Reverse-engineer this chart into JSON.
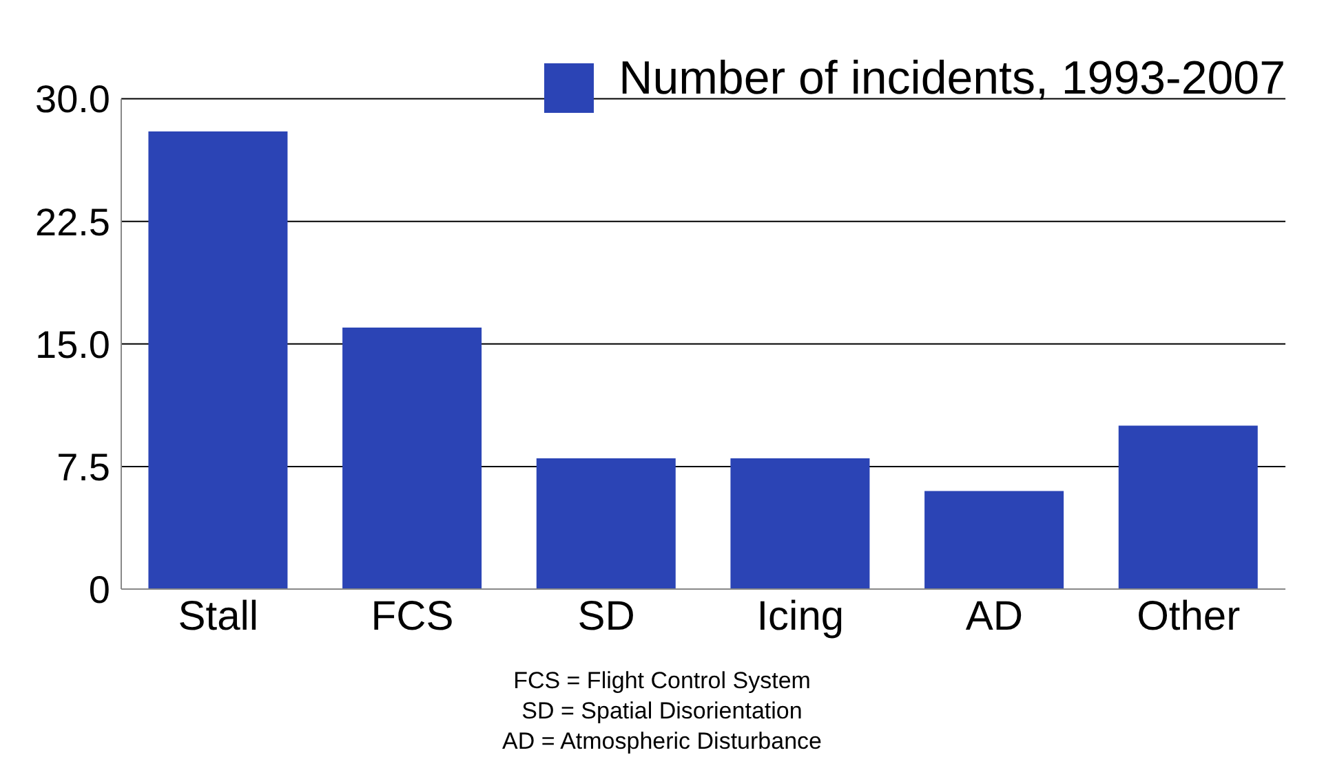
{
  "chart_data": {
    "type": "bar",
    "categories": [
      "Stall",
      "FCS",
      "SD",
      "Icing",
      "AD",
      "Other"
    ],
    "series": [
      {
        "name": "Number of incidents, 1993-2007",
        "color": "#2b44b5",
        "values": [
          28,
          16,
          8,
          8,
          6,
          10
        ]
      }
    ],
    "ylim": [
      0,
      30
    ],
    "yticks": [
      0,
      7.5,
      {
        "value": 15,
        "label": "15.0"
      },
      22.5,
      {
        "value": 30,
        "label": "30.0"
      }
    ],
    "grid": "y",
    "legend": "top right",
    "annotations": [
      "FCS = Flight Control System",
      "SD = Spatial Disorientation",
      "AD = Atmospheric Disturbance"
    ]
  }
}
